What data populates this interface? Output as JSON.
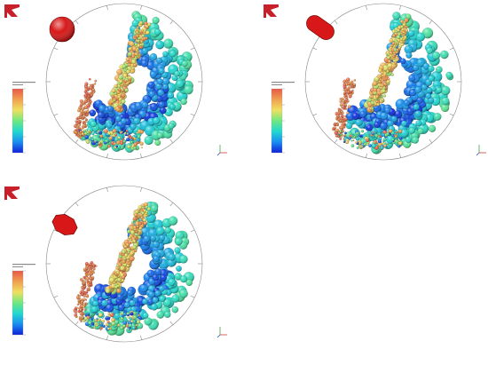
{
  "panels": [
    {
      "id": "top-left",
      "particle_shape": "sphere"
    },
    {
      "id": "top-right",
      "particle_shape": "capsule"
    },
    {
      "id": "bottom-left",
      "particle_shape": "octagon"
    }
  ],
  "colormap": [
    "#1020d8",
    "#1a8ef0",
    "#22d8d0",
    "#6fe880",
    "#f0e060",
    "#f0a050",
    "#e85848"
  ],
  "logo": {
    "color": "#c8202a"
  },
  "shape_color": "#d81818"
}
